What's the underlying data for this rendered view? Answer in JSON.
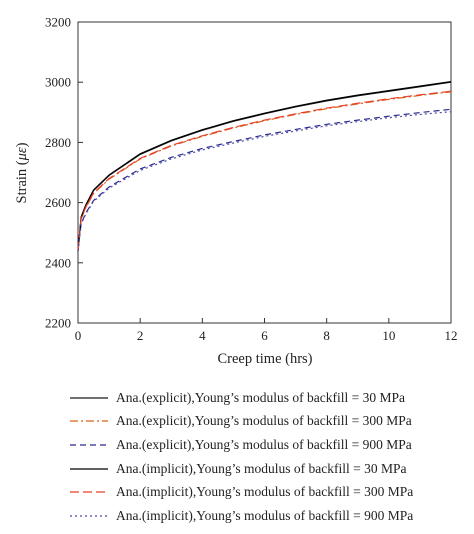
{
  "chart_data": {
    "type": "line",
    "xlabel": "Creep time (hrs)",
    "ylabel_main": "Strain (",
    "ylabel_unit": "με",
    "ylabel_close": ")",
    "xlim": [
      0,
      12
    ],
    "ylim": [
      2200,
      3200
    ],
    "xticks": [
      "0",
      "2",
      "4",
      "6",
      "8",
      "10",
      "12"
    ],
    "yticks": [
      "2200",
      "2400",
      "2600",
      "2800",
      "3000",
      "3200"
    ],
    "grid": false,
    "legend_position": "bottom",
    "series": [
      {
        "name": "Ana.(explicit),Young’s modulus of backfill = 30 MPa",
        "color": "#1a1a1a",
        "dash": "solid",
        "x": [
          0,
          0.1,
          0.25,
          0.5,
          1,
          2,
          3,
          4,
          5,
          6,
          7,
          8,
          9,
          10,
          11,
          12
        ],
        "y": [
          2440,
          2550,
          2590,
          2640,
          2690,
          2760,
          2805,
          2840,
          2870,
          2895,
          2918,
          2938,
          2955,
          2970,
          2985,
          3000
        ]
      },
      {
        "name": "Ana.(explicit),Young’s modulus of backfill = 300 MPa",
        "color": "#d95f1a",
        "dash": "dashdot",
        "x": [
          0,
          0.1,
          0.25,
          0.5,
          1,
          2,
          3,
          4,
          5,
          6,
          7,
          8,
          9,
          10,
          11,
          12
        ],
        "y": [
          2440,
          2545,
          2583,
          2630,
          2678,
          2745,
          2788,
          2820,
          2848,
          2872,
          2893,
          2912,
          2928,
          2943,
          2956,
          2968
        ]
      },
      {
        "name": "Ana.(explicit),Young’s modulus of backfill = 900 MPa",
        "color": "#2b2b8f",
        "dash": "dashed",
        "x": [
          0,
          0.1,
          0.25,
          0.5,
          1,
          2,
          3,
          4,
          5,
          6,
          7,
          8,
          9,
          10,
          11,
          12
        ],
        "y": [
          2440,
          2530,
          2565,
          2607,
          2652,
          2712,
          2750,
          2780,
          2803,
          2825,
          2843,
          2860,
          2874,
          2887,
          2899,
          2910
        ]
      },
      {
        "name": "Ana.(implicit),Young’s modulus of backfill = 30 MPa",
        "color": "#000000",
        "dash": "solid",
        "x": [
          0,
          0.1,
          0.25,
          0.5,
          1,
          2,
          3,
          4,
          5,
          6,
          7,
          8,
          9,
          10,
          11,
          12
        ],
        "y": [
          2440,
          2552,
          2592,
          2642,
          2692,
          2762,
          2807,
          2842,
          2872,
          2897,
          2920,
          2940,
          2957,
          2972,
          2987,
          3002
        ]
      },
      {
        "name": "Ana.(implicit),Young’s modulus of backfill = 300 MPa",
        "color": "#e8412a",
        "dash": "longdash",
        "x": [
          0,
          0.1,
          0.25,
          0.5,
          1,
          2,
          3,
          4,
          5,
          6,
          7,
          8,
          9,
          10,
          11,
          12
        ],
        "y": [
          2440,
          2546,
          2585,
          2632,
          2680,
          2747,
          2790,
          2822,
          2850,
          2874,
          2895,
          2914,
          2930,
          2945,
          2958,
          2970
        ]
      },
      {
        "name": "Ana.(implicit),Young’s modulus of backfill = 900 MPa",
        "color": "#4a4aa8",
        "dash": "dotted",
        "x": [
          0,
          0.1,
          0.25,
          0.5,
          1,
          2,
          3,
          4,
          5,
          6,
          7,
          8,
          9,
          10,
          11,
          12
        ],
        "y": [
          2440,
          2528,
          2562,
          2604,
          2648,
          2707,
          2745,
          2775,
          2798,
          2820,
          2838,
          2855,
          2869,
          2882,
          2893,
          2902
        ]
      }
    ]
  }
}
